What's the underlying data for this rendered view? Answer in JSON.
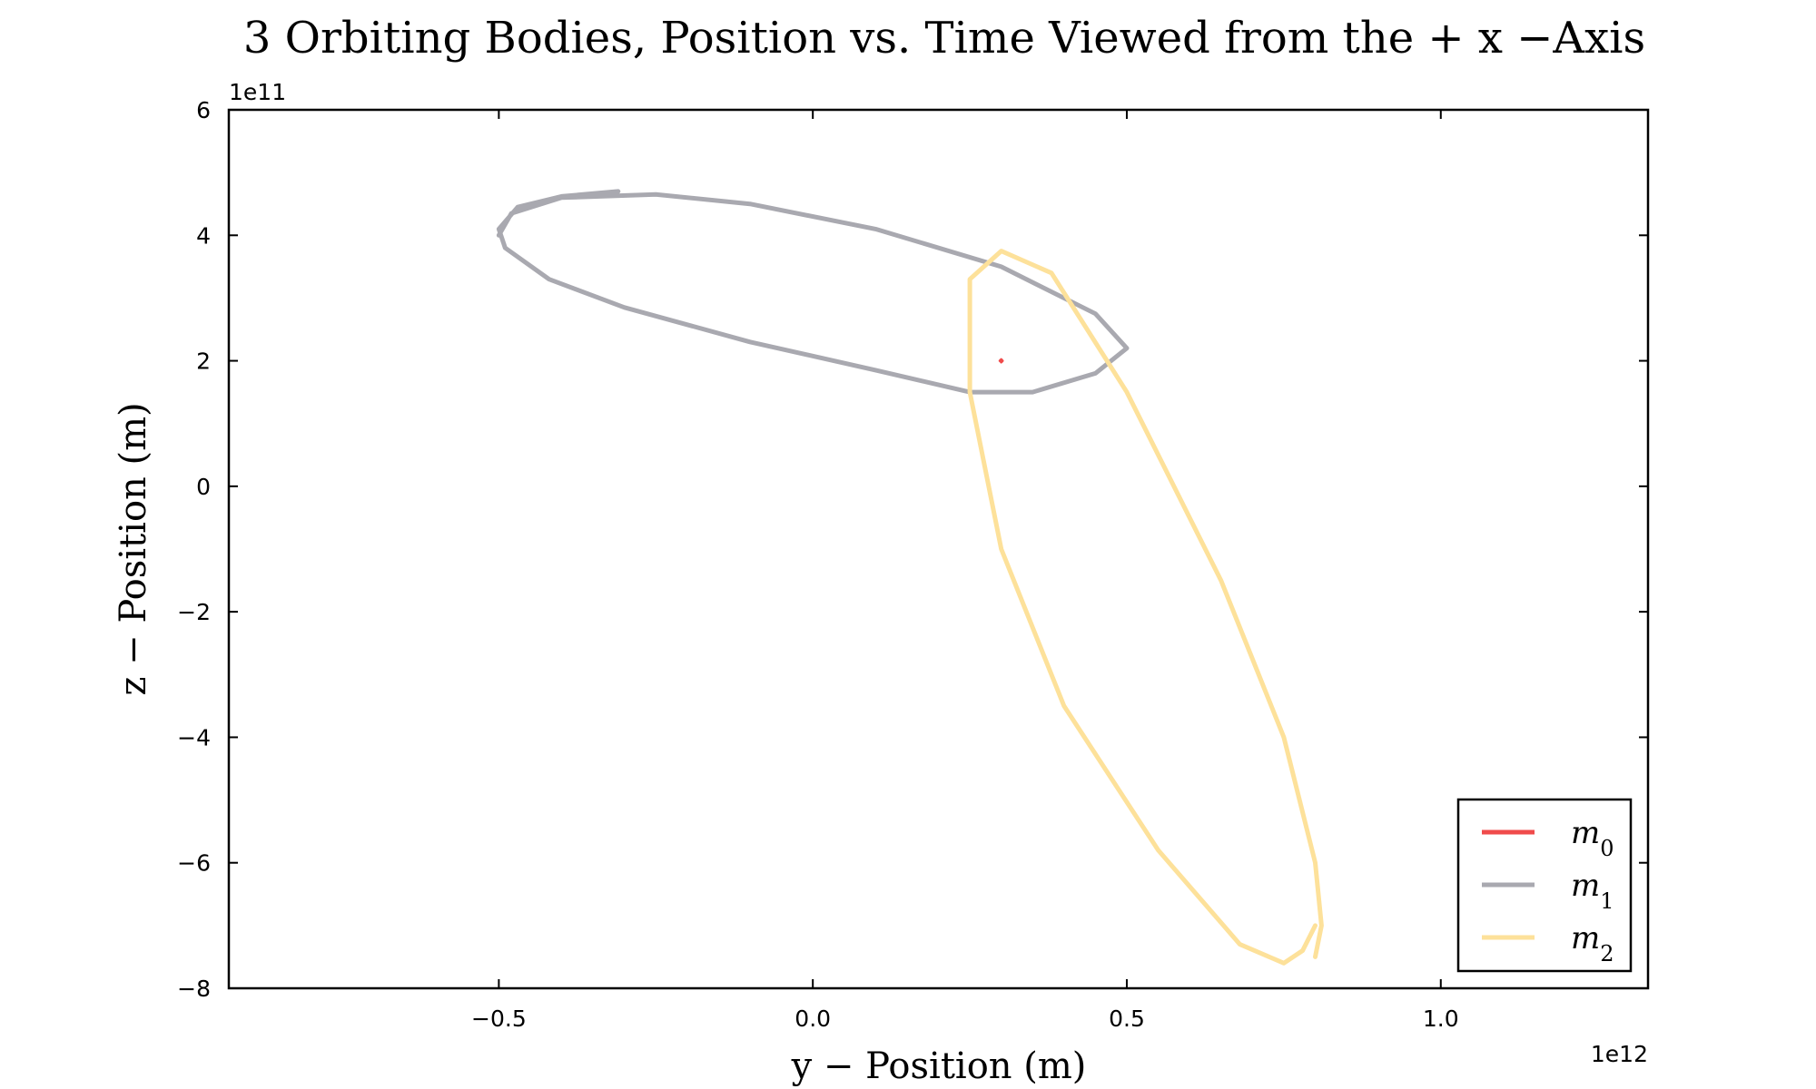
{
  "chart_data": {
    "type": "line",
    "title": "3 Orbiting Bodies, Position vs. Time Viewed from the + x −Axis",
    "xlabel": "y − Position (m)",
    "ylabel": "z − Position (m)",
    "x_offset_label": "1e12",
    "y_offset_label": "1e11",
    "x_scale": 1000000000000.0,
    "y_scale": 100000000000.0,
    "xlim": [
      -0.93,
      1.33
    ],
    "ylim": [
      -8,
      6
    ],
    "x_ticks": [
      -0.5,
      0.0,
      0.5,
      1.0
    ],
    "x_tick_labels": [
      "−0.5",
      "0.0",
      "0.5",
      "1.0"
    ],
    "y_ticks": [
      -8,
      -6,
      -4,
      -2,
      0,
      2,
      4,
      6
    ],
    "y_tick_labels": [
      "−8",
      "−6",
      "−4",
      "−2",
      "0",
      "2",
      "4",
      "6"
    ],
    "legend_position": "lower-right",
    "series": [
      {
        "name": "m",
        "subscript": "0",
        "color": "#f04b4b",
        "points": [
          [
            0.298,
            2.0
          ],
          [
            0.3,
            2.02
          ],
          [
            0.302,
            2.0
          ],
          [
            0.3,
            1.98
          ]
        ]
      },
      {
        "name": "m",
        "subscript": "1",
        "color": "#a9a9b0",
        "points": [
          [
            -0.31,
            4.7
          ],
          [
            -0.4,
            4.62
          ],
          [
            -0.47,
            4.45
          ],
          [
            -0.5,
            4.1
          ],
          [
            -0.49,
            3.8
          ],
          [
            -0.42,
            3.3
          ],
          [
            -0.3,
            2.85
          ],
          [
            -0.1,
            2.3
          ],
          [
            0.1,
            1.85
          ],
          [
            0.25,
            1.5
          ],
          [
            0.35,
            1.5
          ],
          [
            0.45,
            1.8
          ],
          [
            0.5,
            2.2
          ],
          [
            0.45,
            2.75
          ],
          [
            0.3,
            3.5
          ],
          [
            0.1,
            4.1
          ],
          [
            -0.1,
            4.5
          ],
          [
            -0.25,
            4.65
          ],
          [
            -0.4,
            4.6
          ],
          [
            -0.48,
            4.35
          ],
          [
            -0.5,
            4.0
          ]
        ]
      },
      {
        "name": "m",
        "subscript": "2",
        "color": "#fde19a",
        "points": [
          [
            0.8,
            -7.0
          ],
          [
            0.78,
            -7.4
          ],
          [
            0.75,
            -7.6
          ],
          [
            0.68,
            -7.3
          ],
          [
            0.55,
            -5.8
          ],
          [
            0.4,
            -3.5
          ],
          [
            0.3,
            -1.0
          ],
          [
            0.25,
            1.5
          ],
          [
            0.25,
            3.3
          ],
          [
            0.3,
            3.75
          ],
          [
            0.38,
            3.4
          ],
          [
            0.5,
            1.5
          ],
          [
            0.65,
            -1.5
          ],
          [
            0.75,
            -4.0
          ],
          [
            0.8,
            -6.0
          ],
          [
            0.81,
            -7.0
          ],
          [
            0.8,
            -7.5
          ]
        ]
      }
    ]
  }
}
